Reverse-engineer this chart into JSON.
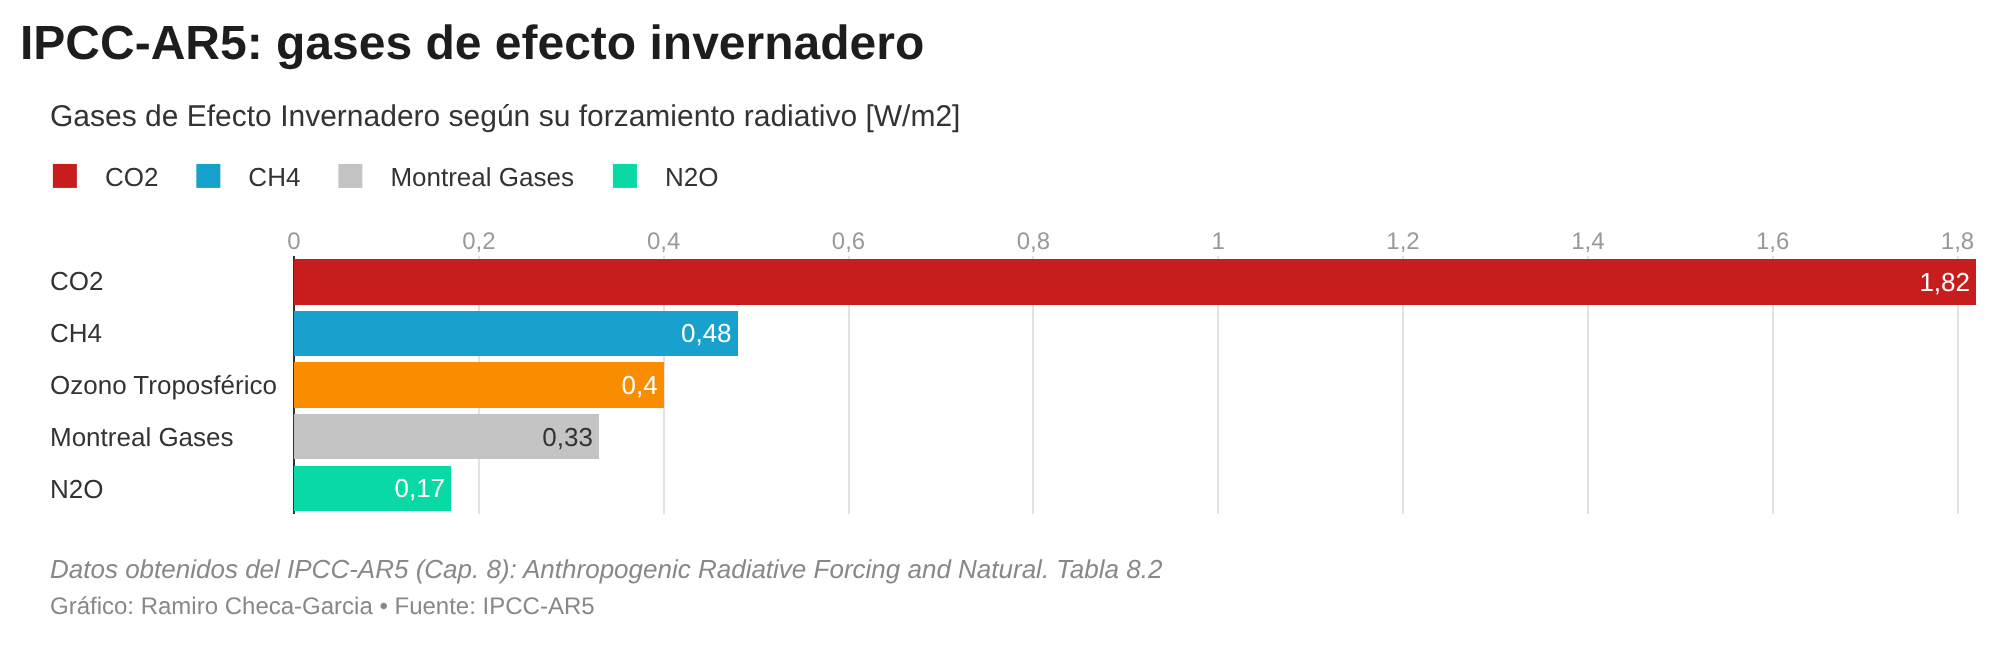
{
  "chart_data": {
    "type": "bar",
    "orientation": "horizontal",
    "stacked": true,
    "title": "IPCC-AR5: gases de efecto invernadero",
    "subtitle": "Gases de Efecto Invernadero según su forzamiento radiativo [W/m2]",
    "categories": [
      "CO2",
      "CH4",
      "Ozono Troposférico",
      "Montreal Gases",
      "N2O"
    ],
    "series": [
      {
        "name": "CO2",
        "color": "#c71e1d",
        "values": [
          1.82,
          null,
          null,
          null,
          null
        ],
        "value_labels": [
          "1,82",
          null,
          null,
          null,
          null
        ]
      },
      {
        "name": "CH4",
        "color": "#18a1cd",
        "values": [
          null,
          0.48,
          null,
          null,
          null
        ],
        "value_labels": [
          null,
          "0,48",
          null,
          null,
          null
        ]
      },
      {
        "color": "#fa8c00",
        "values": [
          null,
          null,
          0.4,
          null,
          null
        ],
        "value_labels": [
          null,
          null,
          "0,4",
          null,
          null
        ]
      },
      {
        "name": "Montreal Gases",
        "color": "#c4c4c4",
        "values": [
          null,
          null,
          null,
          0.33,
          null
        ],
        "value_labels": [
          null,
          null,
          null,
          "0,33",
          null
        ]
      },
      {
        "name": "N2O",
        "color": "#09d9a4",
        "values": [
          null,
          null,
          null,
          null,
          0.17
        ],
        "value_labels": [
          null,
          null,
          null,
          null,
          "0,17"
        ]
      }
    ],
    "xlim": [
      0,
      1.82
    ],
    "xticks": [
      0,
      {
        "value": 0.2,
        "label": "0,2"
      },
      {
        "value": 0.4,
        "label": "0,4"
      },
      {
        "value": 0.6,
        "label": "0,6"
      },
      {
        "value": 0.8,
        "label": "0,8"
      },
      1,
      {
        "value": 1.2,
        "label": "1,2"
      },
      {
        "value": 1.4,
        "label": "1,4"
      },
      {
        "value": 1.6,
        "label": "1,6"
      },
      {
        "value": 1.8,
        "label": "1,8"
      }
    ],
    "grid": "x",
    "legend": "top left",
    "annotations": [
      "Datos obtenidos del IPCC-AR5 (Cap. 8): Anthropogenic Radiative Forcing and Natural. Tabla 8.2",
      "Gráfico: Ramiro Checa-Garcia • Fuente: IPCC-AR5"
    ]
  }
}
